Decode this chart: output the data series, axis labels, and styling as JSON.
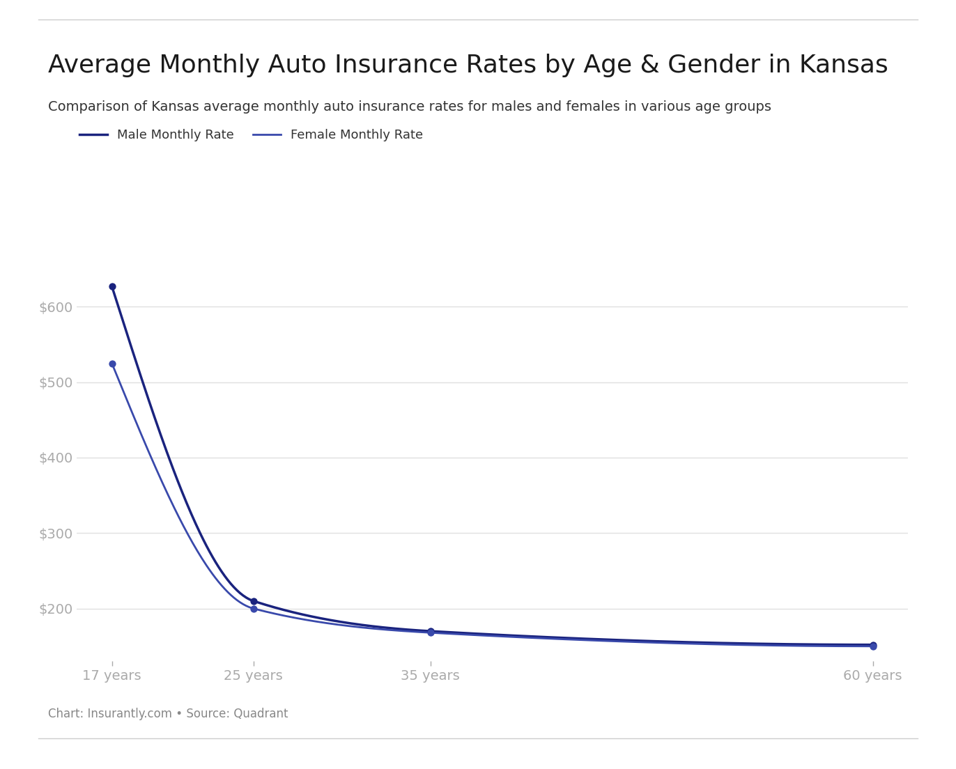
{
  "title": "Average Monthly Auto Insurance Rates by Age & Gender in Kansas",
  "subtitle": "Comparison of Kansas average monthly auto insurance rates for males and females in various age groups",
  "ages": [
    17,
    25,
    35,
    60
  ],
  "age_labels": [
    "17 years",
    "25 years",
    "35 years",
    "60 years"
  ],
  "male_rates": [
    627,
    210,
    170,
    152
  ],
  "female_rates": [
    525,
    200,
    168,
    150
  ],
  "male_color": "#1a237e",
  "female_color": "#3949ab",
  "male_label": "Male Monthly Rate",
  "female_label": "Female Monthly Rate",
  "yticks": [
    200,
    300,
    400,
    500,
    600
  ],
  "ylim": [
    130,
    660
  ],
  "background_color": "#ffffff",
  "grid_color": "#e0e0e0",
  "tick_color": "#aaaaaa",
  "title_fontsize": 26,
  "subtitle_fontsize": 14,
  "legend_fontsize": 13,
  "tick_fontsize": 14,
  "footer_text": "Chart: Insurantly.com • Source: Quadrant",
  "footer_fontsize": 12,
  "footer_color": "#888888"
}
